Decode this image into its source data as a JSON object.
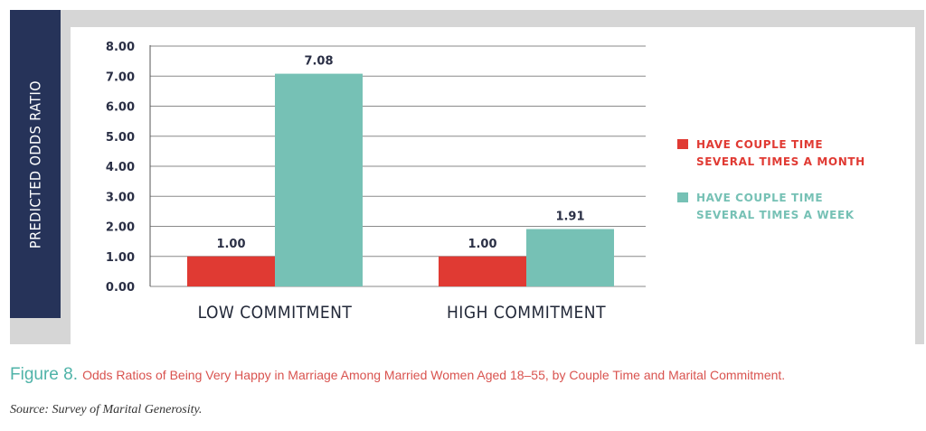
{
  "figure": {
    "label": "Figure 8.",
    "caption": "Odds Ratios of Being Very Happy in Marriage Among Married Women Aged 18–55, by Couple Time and Marital Commitment.",
    "source": "Source: Survey of Marital Generosity."
  },
  "chart_data": {
    "type": "bar",
    "ylabel": "PREDICTED ODDS RATIO",
    "ylim": [
      0,
      8
    ],
    "yticks": [
      "0.00",
      "1.00",
      "2.00",
      "3.00",
      "4.00",
      "5.00",
      "6.00",
      "7.00",
      "8.00"
    ],
    "grid": true,
    "legend_position": "right",
    "categories": [
      "LOW COMMITMENT",
      "HIGH COMMITMENT"
    ],
    "series": [
      {
        "name": "HAVE COUPLE TIME SEVERAL TIMES A MONTH",
        "line1": "HAVE COUPLE TIME",
        "line2": "SEVERAL TIMES A MONTH",
        "color": "#e03a33",
        "values": [
          1.0,
          1.0
        ],
        "labels": [
          "1.00",
          "1.00"
        ]
      },
      {
        "name": "HAVE COUPLE TIME SEVERAL TIMES A WEEK",
        "line1": "HAVE COUPLE TIME",
        "line2": "SEVERAL TIMES A WEEK",
        "color": "#76c1b5",
        "values": [
          7.08,
          1.91
        ],
        "labels": [
          "7.08",
          "1.91"
        ]
      }
    ]
  }
}
